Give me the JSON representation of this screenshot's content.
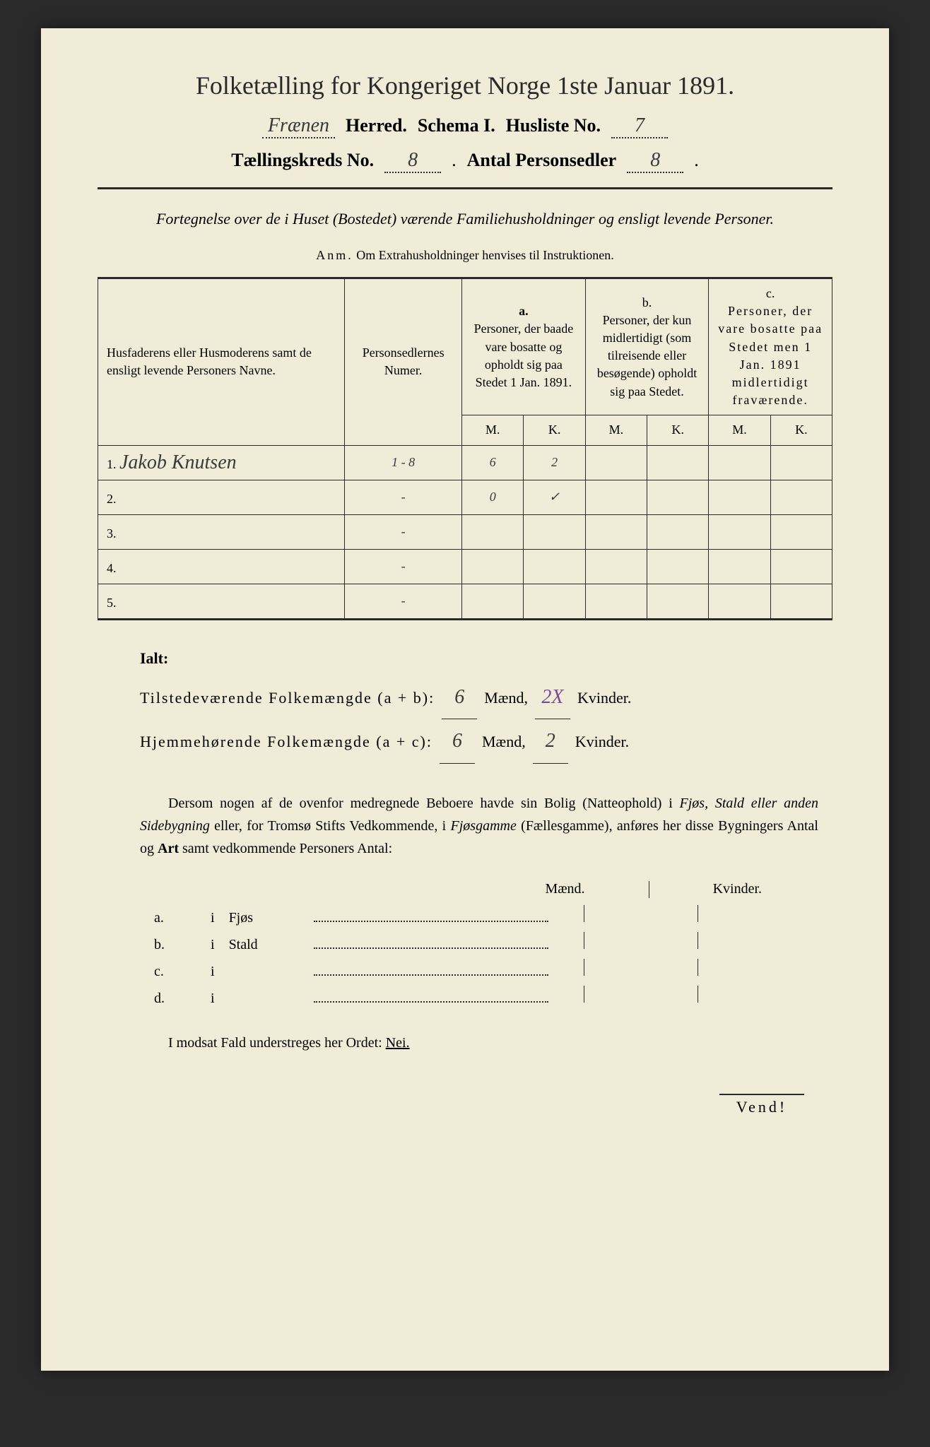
{
  "title": "Folketælling for Kongeriget Norge 1ste Januar 1891.",
  "header": {
    "herred_value": "Frænen",
    "herred_label": "Herred.",
    "schema_label": "Schema I.",
    "husliste_label": "Husliste No.",
    "husliste_value": "7",
    "kreds_label": "Tællingskreds No.",
    "kreds_value": "8",
    "personsedler_label": "Antal Personsedler",
    "personsedler_value": "8"
  },
  "description": "Fortegnelse over de i Huset (Bostedet) værende Familiehusholdninger og ensligt levende Personer.",
  "anm": {
    "label": "Anm.",
    "text": "Om Extrahusholdninger henvises til Instruktionen."
  },
  "table": {
    "headers": {
      "name": "Husfaderens eller Husmoderens samt de ensligt levende Personers Navne.",
      "numer": "Personsedlernes Numer.",
      "col_a_label": "a.",
      "col_a": "Personer, der baade vare bosatte og opholdt sig paa Stedet 1 Jan. 1891.",
      "col_b_label": "b.",
      "col_b": "Personer, der kun midlertidigt (som tilreisende eller besøgende) opholdt sig paa Stedet.",
      "col_c_label": "c.",
      "col_c": "Personer, der vare bosatte paa Stedet men 1 Jan. 1891 midlertidigt fraværende.",
      "m": "M.",
      "k": "K."
    },
    "rows": [
      {
        "n": "1.",
        "name": "Jakob Knutsen",
        "numer": "1 - 8",
        "am": "6",
        "ak": "2",
        "bm": "",
        "bk": "",
        "cm": "",
        "ck": ""
      },
      {
        "n": "2.",
        "name": "",
        "numer": "-",
        "am": "0",
        "ak": "✓",
        "bm": "",
        "bk": "",
        "cm": "",
        "ck": ""
      },
      {
        "n": "3.",
        "name": "",
        "numer": "-",
        "am": "",
        "ak": "",
        "bm": "",
        "bk": "",
        "cm": "",
        "ck": ""
      },
      {
        "n": "4.",
        "name": "",
        "numer": "-",
        "am": "",
        "ak": "",
        "bm": "",
        "bk": "",
        "cm": "",
        "ck": ""
      },
      {
        "n": "5.",
        "name": "",
        "numer": "-",
        "am": "",
        "ak": "",
        "bm": "",
        "bk": "",
        "cm": "",
        "ck": ""
      }
    ]
  },
  "totals": {
    "ialt": "Ialt:",
    "line1_label": "Tilstedeværende Folkemængde (a + b):",
    "line1_m": "6",
    "line1_k": "2X",
    "line2_label": "Hjemmehørende Folkemængde (a + c):",
    "line2_m": "6",
    "line2_k": "2",
    "maend": "Mænd,",
    "kvinder": "Kvinder."
  },
  "paragraph": {
    "p1": "Dersom nogen af de ovenfor medregnede Beboere havde sin Bolig (Natteophold) i ",
    "p2": "Fjøs, Stald eller anden Sidebygning",
    "p3": " eller, for Tromsø Stifts Vedkommende, i ",
    "p4": "Fjøsgamme",
    "p5": " (Fællesgamme), anføres her disse Bygningers Antal og ",
    "p6": "Art",
    "p7": " samt vedkommende Personers Antal:"
  },
  "buildings": {
    "maend": "Mænd.",
    "kvinder": "Kvinder.",
    "rows": [
      {
        "label": "a.",
        "i": "i",
        "name": "Fjøs"
      },
      {
        "label": "b.",
        "i": "i",
        "name": "Stald"
      },
      {
        "label": "c.",
        "i": "i",
        "name": ""
      },
      {
        "label": "d.",
        "i": "i",
        "name": ""
      }
    ]
  },
  "footer": {
    "text1": "I modsat Fald understreges her Ordet: ",
    "nei": "Nei.",
    "vend": "Vend!"
  },
  "colors": {
    "page_bg": "#f0ecd8",
    "text": "#2a2a2a",
    "handwritten": "#3a3a3a",
    "purple": "#7a4a9a"
  }
}
